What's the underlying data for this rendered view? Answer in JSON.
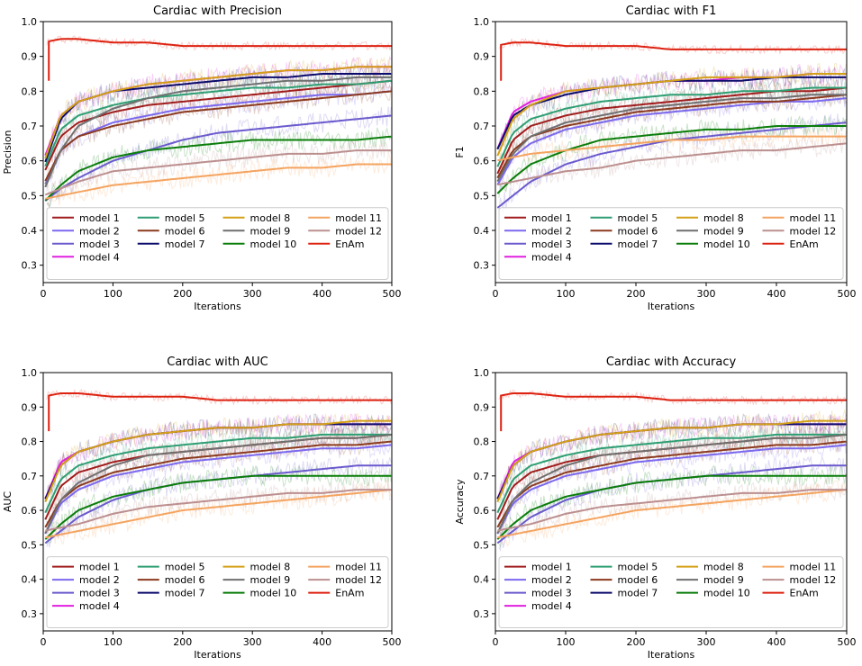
{
  "chart_data": [
    {
      "type": "line",
      "title": "Cardiac with Precision",
      "xlabel": "Iterations",
      "ylabel": "Precision",
      "xlim": [
        0,
        500
      ],
      "ylim": [
        0.25,
        1.0
      ],
      "xticks": [
        0,
        100,
        200,
        300,
        400,
        500
      ],
      "yticks": [
        0.3,
        0.4,
        0.5,
        0.6,
        0.7,
        0.8,
        0.9,
        1.0
      ],
      "x": [
        0,
        25,
        50,
        100,
        150,
        200,
        250,
        300,
        350,
        400,
        450,
        500
      ],
      "legend_position": "lower inside axes, 4 columns",
      "series": [
        {
          "name": "model 1",
          "color": "#a01c1c",
          "values": [
            0.56,
            0.67,
            0.71,
            0.74,
            0.76,
            0.77,
            0.78,
            0.79,
            0.8,
            0.81,
            0.82,
            0.83
          ]
        },
        {
          "name": "model 2",
          "color": "#7b68ee",
          "values": [
            0.52,
            0.63,
            0.67,
            0.71,
            0.73,
            0.75,
            0.76,
            0.77,
            0.78,
            0.79,
            0.79,
            0.8
          ]
        },
        {
          "name": "model 3",
          "color": "#6a5acd",
          "values": [
            0.48,
            0.52,
            0.55,
            0.6,
            0.63,
            0.66,
            0.68,
            0.69,
            0.7,
            0.71,
            0.72,
            0.73
          ]
        },
        {
          "name": "model 4",
          "color": "#e020e0",
          "values": [
            0.6,
            0.73,
            0.77,
            0.8,
            0.82,
            0.83,
            0.84,
            0.85,
            0.86,
            0.86,
            0.87,
            0.87
          ]
        },
        {
          "name": "model 5",
          "color": "#2e9e73",
          "values": [
            0.57,
            0.69,
            0.73,
            0.76,
            0.78,
            0.79,
            0.8,
            0.81,
            0.81,
            0.82,
            0.82,
            0.83
          ]
        },
        {
          "name": "model 6",
          "color": "#8b3a1e",
          "values": [
            0.53,
            0.63,
            0.67,
            0.7,
            0.72,
            0.74,
            0.75,
            0.76,
            0.77,
            0.78,
            0.79,
            0.8
          ]
        },
        {
          "name": "model 7",
          "color": "#0b0b6b",
          "values": [
            0.58,
            0.72,
            0.77,
            0.8,
            0.81,
            0.82,
            0.83,
            0.84,
            0.84,
            0.85,
            0.85,
            0.85
          ]
        },
        {
          "name": "model 8",
          "color": "#d4a017",
          "values": [
            0.59,
            0.73,
            0.77,
            0.8,
            0.82,
            0.83,
            0.84,
            0.85,
            0.86,
            0.86,
            0.87,
            0.87
          ]
        },
        {
          "name": "model 9",
          "color": "#6f6f6f",
          "values": [
            0.51,
            0.63,
            0.7,
            0.75,
            0.78,
            0.8,
            0.81,
            0.82,
            0.83,
            0.83,
            0.84,
            0.84
          ]
        },
        {
          "name": "model 10",
          "color": "#0a7d0a",
          "values": [
            0.48,
            0.53,
            0.57,
            0.61,
            0.63,
            0.64,
            0.65,
            0.66,
            0.66,
            0.66,
            0.66,
            0.67
          ]
        },
        {
          "name": "model 11",
          "color": "#f4a460",
          "values": [
            0.49,
            0.5,
            0.51,
            0.53,
            0.54,
            0.55,
            0.56,
            0.57,
            0.58,
            0.58,
            0.59,
            0.59
          ]
        },
        {
          "name": "model 12",
          "color": "#bc8f8f",
          "values": [
            0.5,
            0.52,
            0.54,
            0.57,
            0.58,
            0.59,
            0.6,
            0.61,
            0.62,
            0.62,
            0.63,
            0.63
          ]
        },
        {
          "name": "EnAm",
          "color": "#dd2211",
          "values": [
            0.94,
            0.95,
            0.95,
            0.94,
            0.94,
            0.93,
            0.93,
            0.93,
            0.93,
            0.93,
            0.93,
            0.93
          ]
        }
      ]
    },
    {
      "type": "line",
      "title": "Cardiac with F1",
      "xlabel": "Iterations",
      "ylabel": "F1",
      "xlim": [
        0,
        500
      ],
      "ylim": [
        0.25,
        1.0
      ],
      "xticks": [
        0,
        100,
        200,
        300,
        400,
        500
      ],
      "yticks": [
        0.3,
        0.4,
        0.5,
        0.6,
        0.7,
        0.8,
        0.9,
        1.0
      ],
      "x": [
        0,
        25,
        50,
        100,
        150,
        200,
        250,
        300,
        350,
        400,
        450,
        500
      ],
      "legend_position": "lower inside axes, 4 columns",
      "series": [
        {
          "name": "model 1",
          "color": "#a01c1c",
          "values": [
            0.55,
            0.66,
            0.7,
            0.73,
            0.75,
            0.76,
            0.77,
            0.78,
            0.79,
            0.8,
            0.8,
            0.81
          ]
        },
        {
          "name": "model 2",
          "color": "#7b68ee",
          "values": [
            0.52,
            0.61,
            0.65,
            0.69,
            0.71,
            0.73,
            0.74,
            0.75,
            0.76,
            0.77,
            0.77,
            0.78
          ]
        },
        {
          "name": "model 3",
          "color": "#6a5acd",
          "values": [
            0.46,
            0.5,
            0.54,
            0.59,
            0.62,
            0.64,
            0.66,
            0.67,
            0.68,
            0.69,
            0.7,
            0.71
          ]
        },
        {
          "name": "model 4",
          "color": "#e020e0",
          "values": [
            0.62,
            0.74,
            0.77,
            0.8,
            0.81,
            0.82,
            0.83,
            0.83,
            0.84,
            0.84,
            0.85,
            0.85
          ]
        },
        {
          "name": "model 5",
          "color": "#2e9e73",
          "values": [
            0.57,
            0.68,
            0.72,
            0.75,
            0.77,
            0.78,
            0.79,
            0.79,
            0.8,
            0.8,
            0.81,
            0.81
          ]
        },
        {
          "name": "model 6",
          "color": "#8b3a1e",
          "values": [
            0.54,
            0.63,
            0.67,
            0.7,
            0.72,
            0.74,
            0.75,
            0.76,
            0.77,
            0.77,
            0.78,
            0.79
          ]
        },
        {
          "name": "model 7",
          "color": "#0b0b6b",
          "values": [
            0.62,
            0.73,
            0.76,
            0.79,
            0.81,
            0.82,
            0.83,
            0.83,
            0.83,
            0.84,
            0.84,
            0.84
          ]
        },
        {
          "name": "model 8",
          "color": "#d4a017",
          "values": [
            0.6,
            0.72,
            0.76,
            0.8,
            0.81,
            0.82,
            0.83,
            0.84,
            0.84,
            0.84,
            0.85,
            0.85
          ]
        },
        {
          "name": "model 9",
          "color": "#6f6f6f",
          "values": [
            0.53,
            0.62,
            0.67,
            0.71,
            0.73,
            0.75,
            0.76,
            0.77,
            0.78,
            0.78,
            0.79,
            0.79
          ]
        },
        {
          "name": "model 10",
          "color": "#0a7d0a",
          "values": [
            0.5,
            0.55,
            0.59,
            0.63,
            0.66,
            0.67,
            0.68,
            0.69,
            0.69,
            0.7,
            0.7,
            0.7
          ]
        },
        {
          "name": "model 11",
          "color": "#f4a460",
          "values": [
            0.6,
            0.61,
            0.62,
            0.63,
            0.64,
            0.65,
            0.66,
            0.66,
            0.67,
            0.67,
            0.67,
            0.67
          ]
        },
        {
          "name": "model 12",
          "color": "#bc8f8f",
          "values": [
            0.53,
            0.54,
            0.55,
            0.57,
            0.58,
            0.6,
            0.61,
            0.62,
            0.63,
            0.63,
            0.64,
            0.65
          ]
        },
        {
          "name": "EnAm",
          "color": "#dd2211",
          "values": [
            0.93,
            0.94,
            0.94,
            0.93,
            0.93,
            0.93,
            0.92,
            0.92,
            0.92,
            0.92,
            0.92,
            0.92
          ]
        }
      ]
    },
    {
      "type": "line",
      "title": "Cardiac with AUC",
      "xlabel": "Iterations",
      "ylabel": "AUC",
      "xlim": [
        0,
        500
      ],
      "ylim": [
        0.25,
        1.0
      ],
      "xticks": [
        0,
        100,
        200,
        300,
        400,
        500
      ],
      "yticks": [
        0.3,
        0.4,
        0.5,
        0.6,
        0.7,
        0.8,
        0.9,
        1.0
      ],
      "x": [
        0,
        25,
        50,
        100,
        150,
        200,
        250,
        300,
        350,
        400,
        450,
        500
      ],
      "legend_position": "lower inside axes, 4 columns",
      "series": [
        {
          "name": "model 1",
          "color": "#a01c1c",
          "values": [
            0.56,
            0.67,
            0.71,
            0.74,
            0.76,
            0.77,
            0.78,
            0.79,
            0.8,
            0.81,
            0.81,
            0.82
          ]
        },
        {
          "name": "model 2",
          "color": "#7b68ee",
          "values": [
            0.52,
            0.62,
            0.66,
            0.7,
            0.72,
            0.74,
            0.75,
            0.76,
            0.77,
            0.78,
            0.78,
            0.79
          ]
        },
        {
          "name": "model 3",
          "color": "#6a5acd",
          "values": [
            0.5,
            0.54,
            0.58,
            0.63,
            0.66,
            0.68,
            0.69,
            0.7,
            0.71,
            0.72,
            0.73,
            0.73
          ]
        },
        {
          "name": "model 4",
          "color": "#e020e0",
          "values": [
            0.62,
            0.74,
            0.77,
            0.8,
            0.82,
            0.83,
            0.84,
            0.84,
            0.85,
            0.85,
            0.85,
            0.85
          ]
        },
        {
          "name": "model 5",
          "color": "#2e9e73",
          "values": [
            0.58,
            0.69,
            0.73,
            0.76,
            0.78,
            0.79,
            0.8,
            0.81,
            0.81,
            0.82,
            0.82,
            0.82
          ]
        },
        {
          "name": "model 6",
          "color": "#8b3a1e",
          "values": [
            0.54,
            0.63,
            0.67,
            0.71,
            0.73,
            0.75,
            0.76,
            0.77,
            0.78,
            0.79,
            0.79,
            0.8
          ]
        },
        {
          "name": "model 7",
          "color": "#0b0b6b",
          "values": [
            0.62,
            0.73,
            0.77,
            0.8,
            0.82,
            0.83,
            0.84,
            0.84,
            0.85,
            0.85,
            0.85,
            0.85
          ]
        },
        {
          "name": "model 8",
          "color": "#d4a017",
          "values": [
            0.61,
            0.73,
            0.77,
            0.8,
            0.82,
            0.83,
            0.84,
            0.84,
            0.85,
            0.85,
            0.86,
            0.86
          ]
        },
        {
          "name": "model 9",
          "color": "#6f6f6f",
          "values": [
            0.52,
            0.63,
            0.68,
            0.73,
            0.76,
            0.77,
            0.78,
            0.79,
            0.8,
            0.81,
            0.81,
            0.82
          ]
        },
        {
          "name": "model 10",
          "color": "#0a7d0a",
          "values": [
            0.51,
            0.56,
            0.6,
            0.64,
            0.66,
            0.68,
            0.69,
            0.7,
            0.7,
            0.7,
            0.7,
            0.7
          ]
        },
        {
          "name": "model 11",
          "color": "#f4a460",
          "values": [
            0.52,
            0.53,
            0.54,
            0.56,
            0.58,
            0.6,
            0.61,
            0.62,
            0.63,
            0.64,
            0.65,
            0.66
          ]
        },
        {
          "name": "model 12",
          "color": "#bc8f8f",
          "values": [
            0.54,
            0.55,
            0.56,
            0.59,
            0.61,
            0.62,
            0.63,
            0.64,
            0.65,
            0.65,
            0.66,
            0.66
          ]
        },
        {
          "name": "EnAm",
          "color": "#dd2211",
          "values": [
            0.93,
            0.94,
            0.94,
            0.93,
            0.93,
            0.93,
            0.92,
            0.92,
            0.92,
            0.92,
            0.92,
            0.92
          ]
        }
      ]
    },
    {
      "type": "line",
      "title": "Cardiac with Accuracy",
      "xlabel": "Iterations",
      "ylabel": "Accuracy",
      "xlim": [
        0,
        500
      ],
      "ylim": [
        0.25,
        1.0
      ],
      "xticks": [
        0,
        100,
        200,
        300,
        400,
        500
      ],
      "yticks": [
        0.3,
        0.4,
        0.5,
        0.6,
        0.7,
        0.8,
        0.9,
        1.0
      ],
      "x": [
        0,
        25,
        50,
        100,
        150,
        200,
        250,
        300,
        350,
        400,
        450,
        500
      ],
      "legend_position": "lower inside axes, 4 columns",
      "series": [
        {
          "name": "model 1",
          "color": "#a01c1c",
          "values": [
            0.56,
            0.67,
            0.71,
            0.74,
            0.76,
            0.77,
            0.78,
            0.79,
            0.8,
            0.81,
            0.81,
            0.82
          ]
        },
        {
          "name": "model 2",
          "color": "#7b68ee",
          "values": [
            0.52,
            0.62,
            0.66,
            0.7,
            0.72,
            0.74,
            0.75,
            0.76,
            0.77,
            0.78,
            0.78,
            0.79
          ]
        },
        {
          "name": "model 3",
          "color": "#6a5acd",
          "values": [
            0.5,
            0.54,
            0.58,
            0.63,
            0.66,
            0.68,
            0.69,
            0.7,
            0.71,
            0.72,
            0.73,
            0.73
          ]
        },
        {
          "name": "model 4",
          "color": "#e020e0",
          "values": [
            0.62,
            0.74,
            0.77,
            0.8,
            0.82,
            0.83,
            0.84,
            0.84,
            0.85,
            0.85,
            0.85,
            0.85
          ]
        },
        {
          "name": "model 5",
          "color": "#2e9e73",
          "values": [
            0.58,
            0.69,
            0.73,
            0.76,
            0.78,
            0.79,
            0.8,
            0.81,
            0.81,
            0.82,
            0.82,
            0.82
          ]
        },
        {
          "name": "model 6",
          "color": "#8b3a1e",
          "values": [
            0.54,
            0.63,
            0.67,
            0.71,
            0.73,
            0.75,
            0.76,
            0.77,
            0.78,
            0.79,
            0.79,
            0.8
          ]
        },
        {
          "name": "model 7",
          "color": "#0b0b6b",
          "values": [
            0.62,
            0.73,
            0.77,
            0.8,
            0.82,
            0.83,
            0.84,
            0.84,
            0.85,
            0.85,
            0.85,
            0.85
          ]
        },
        {
          "name": "model 8",
          "color": "#d4a017",
          "values": [
            0.61,
            0.73,
            0.77,
            0.8,
            0.82,
            0.83,
            0.84,
            0.84,
            0.85,
            0.85,
            0.86,
            0.86
          ]
        },
        {
          "name": "model 9",
          "color": "#6f6f6f",
          "values": [
            0.52,
            0.63,
            0.68,
            0.73,
            0.76,
            0.77,
            0.78,
            0.79,
            0.8,
            0.81,
            0.81,
            0.82
          ]
        },
        {
          "name": "model 10",
          "color": "#0a7d0a",
          "values": [
            0.51,
            0.56,
            0.6,
            0.64,
            0.66,
            0.68,
            0.69,
            0.7,
            0.7,
            0.7,
            0.7,
            0.7
          ]
        },
        {
          "name": "model 11",
          "color": "#f4a460",
          "values": [
            0.52,
            0.53,
            0.54,
            0.56,
            0.58,
            0.6,
            0.61,
            0.62,
            0.63,
            0.64,
            0.65,
            0.66
          ]
        },
        {
          "name": "model 12",
          "color": "#bc8f8f",
          "values": [
            0.54,
            0.55,
            0.56,
            0.59,
            0.61,
            0.62,
            0.63,
            0.64,
            0.65,
            0.65,
            0.66,
            0.66
          ]
        },
        {
          "name": "EnAm",
          "color": "#dd2211",
          "values": [
            0.93,
            0.94,
            0.94,
            0.93,
            0.93,
            0.93,
            0.92,
            0.92,
            0.92,
            0.92,
            0.92,
            0.92
          ]
        }
      ]
    }
  ]
}
